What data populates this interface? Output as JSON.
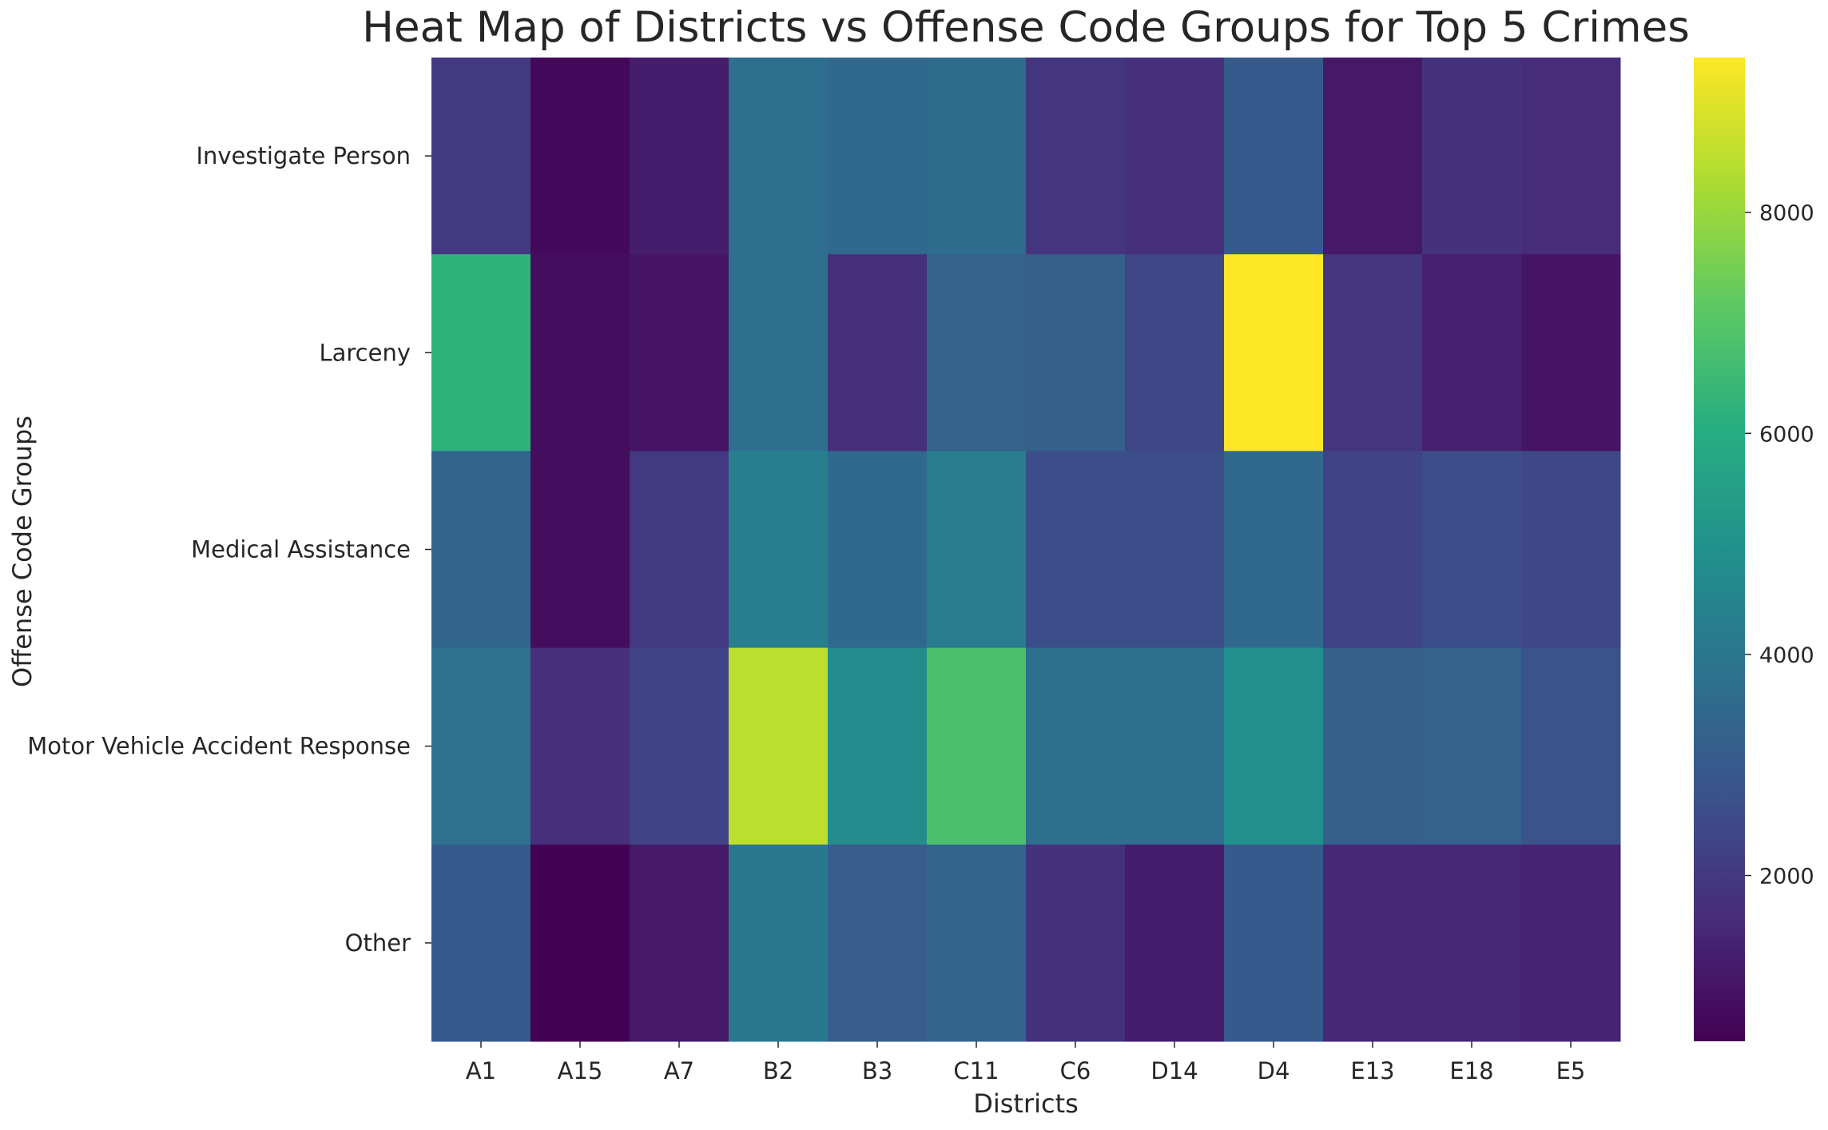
{
  "chart_data": {
    "type": "heatmap",
    "title": "Heat Map of Districts vs Offense Code Groups for Top 5 Crimes",
    "xlabel": "Districts",
    "ylabel": "Offense Code Groups",
    "x": [
      "A1",
      "A15",
      "A7",
      "B2",
      "B3",
      "C11",
      "C6",
      "D14",
      "D4",
      "E13",
      "E18",
      "E5"
    ],
    "y": [
      "Investigate Person",
      "Larceny",
      "Medical Assistance",
      "Motor Vehicle Accident Response",
      "Other"
    ],
    "values": [
      [
        2000,
        700,
        1200,
        3700,
        3500,
        3600,
        1900,
        1700,
        3000,
        1100,
        1800,
        1600
      ],
      [
        6200,
        800,
        1000,
        3700,
        1700,
        3300,
        3200,
        2400,
        9400,
        1900,
        1300,
        1000
      ],
      [
        3400,
        800,
        2000,
        4300,
        3500,
        4200,
        2600,
        2600,
        3500,
        2300,
        2600,
        2400
      ],
      [
        3800,
        1700,
        2300,
        8500,
        4800,
        6800,
        3700,
        3700,
        4900,
        3200,
        3300,
        2800
      ],
      [
        3000,
        500,
        1100,
        4100,
        3100,
        3400,
        1800,
        1200,
        3000,
        1500,
        1500,
        1400
      ]
    ],
    "colorbar": {
      "range": [
        500,
        9400
      ],
      "ticks": [
        2000,
        4000,
        6000,
        8000
      ]
    },
    "colormap": "viridis",
    "grid": false
  }
}
